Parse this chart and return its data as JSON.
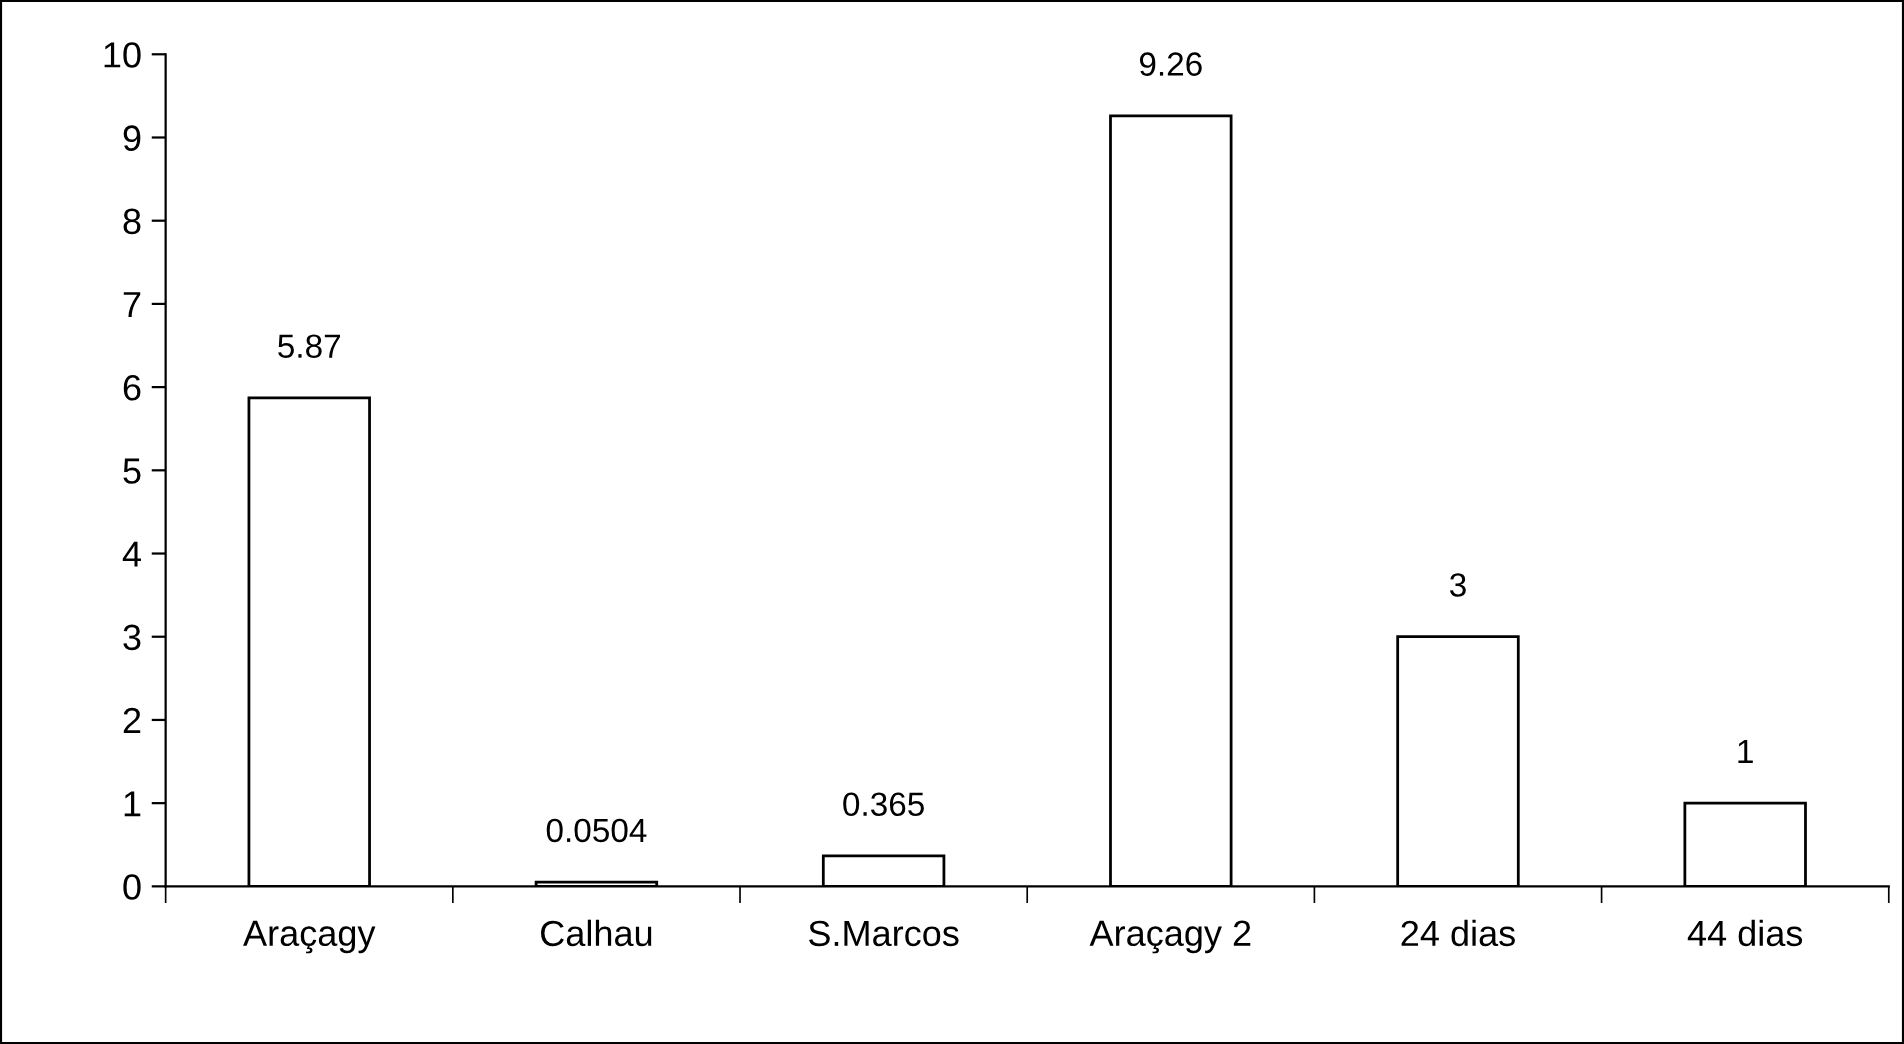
{
  "chart_data": {
    "type": "bar",
    "categories": [
      "Araçagy",
      "Calhau",
      "S.Marcos",
      "Araçagy 2",
      "24 dias",
      "44 dias"
    ],
    "values": [
      5.87,
      0.0504,
      0.365,
      9.26,
      3,
      1
    ],
    "color": "#ffffff",
    "data_labels": true,
    "ylim": [
      0,
      10
    ],
    "yticks": [
      0,
      1,
      2,
      3,
      4,
      5,
      6,
      7,
      8,
      9,
      10
    ],
    "grid": false,
    "legend": false
  }
}
